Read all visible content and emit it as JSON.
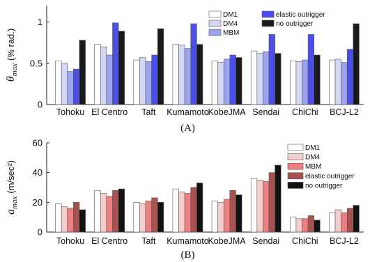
{
  "chart_data": [
    {
      "type": "bar",
      "panel_label": "(A)",
      "ylabel_symbol": "θ",
      "ylabel_sub": "max",
      "ylabel_unit": "(% rad.)",
      "ylim": [
        0,
        1.2
      ],
      "yticks": [
        "0",
        "0.5",
        "1"
      ],
      "ytick_values": [
        0,
        0.5,
        1
      ],
      "grid": false,
      "legend_placement": "top-right",
      "categories": [
        "Tohoku",
        "El Centro",
        "Taft",
        "Kumamoto",
        "KobeJMA",
        "Sendai",
        "ChiChi",
        "BCJ-L2"
      ],
      "series": [
        {
          "name": "DM1",
          "color": "#ffffff",
          "values": [
            0.53,
            0.73,
            0.54,
            0.73,
            0.53,
            0.65,
            0.53,
            0.54
          ]
        },
        {
          "name": "DM4",
          "color": "#d3d6f6",
          "values": [
            0.5,
            0.7,
            0.57,
            0.72,
            0.51,
            0.62,
            0.52,
            0.55
          ]
        },
        {
          "name": "MBM",
          "color": "#9da3ee",
          "values": [
            0.4,
            0.6,
            0.52,
            0.68,
            0.55,
            0.64,
            0.54,
            0.51
          ]
        },
        {
          "name": "elastic outrigger",
          "color": "#4a4fe8",
          "values": [
            0.43,
            0.99,
            0.6,
            0.98,
            0.6,
            0.85,
            0.85,
            0.67
          ]
        },
        {
          "name": "no outrigger",
          "color": "#1a1a1a",
          "values": [
            0.78,
            0.89,
            0.92,
            0.73,
            0.57,
            0.62,
            0.6,
            0.98
          ]
        }
      ]
    },
    {
      "type": "bar",
      "panel_label": "(B)",
      "ylabel_symbol": "a",
      "ylabel_sub": "max",
      "ylabel_unit": "(m/sec²)",
      "ylim": [
        0,
        60
      ],
      "yticks": [
        "0",
        "20",
        "40",
        "60"
      ],
      "ytick_values": [
        0,
        20,
        40,
        60
      ],
      "grid": false,
      "legend_placement": "top-right",
      "categories": [
        "Tohoku",
        "El Centro",
        "Taft",
        "Kumamoto",
        "KobeJMA",
        "Sendai",
        "ChiChi",
        "BCJ-L2"
      ],
      "series": [
        {
          "name": "DM1",
          "color": "#ffffff",
          "values": [
            19,
            28,
            20,
            29,
            21,
            36,
            10,
            13
          ]
        },
        {
          "name": "DM4",
          "color": "#f6cccc",
          "values": [
            17,
            26,
            19,
            27,
            20,
            35,
            9,
            15
          ]
        },
        {
          "name": "MBM",
          "color": "#ee8080",
          "values": [
            16,
            24,
            21,
            26,
            22,
            34,
            9,
            13
          ]
        },
        {
          "name": "elastic outrigger",
          "color": "#a85252",
          "values": [
            20,
            28,
            23,
            30,
            28,
            40,
            11,
            16
          ]
        },
        {
          "name": "no outrigger",
          "color": "#121212",
          "values": [
            15,
            29,
            20,
            33,
            25,
            45,
            8,
            18
          ]
        }
      ]
    }
  ]
}
